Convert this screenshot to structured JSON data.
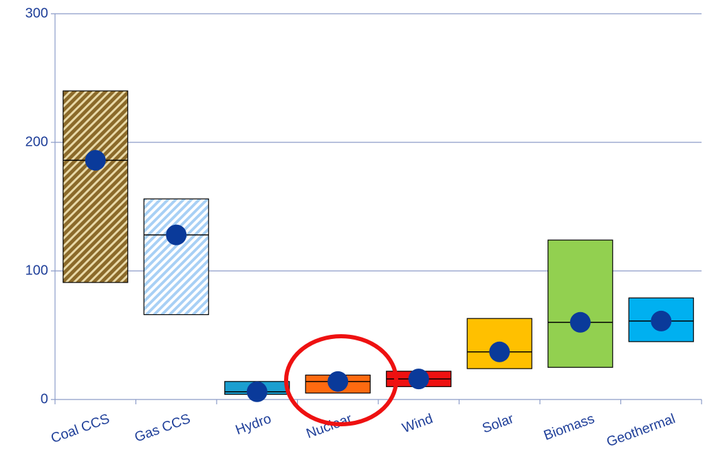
{
  "chart_data": {
    "type": "range-box",
    "categories": [
      "Coal CCS",
      "Gas CCS",
      "Hydro",
      "Nuclear",
      "Wind",
      "Solar",
      "Biomass",
      "Geothermal"
    ],
    "low": [
      91,
      66,
      4,
      5,
      10,
      24,
      25,
      45
    ],
    "high": [
      240,
      156,
      14,
      19,
      22,
      63,
      124,
      79
    ],
    "median": [
      186,
      128,
      6,
      14,
      16,
      37,
      60,
      61
    ],
    "values": [
      186,
      128,
      6,
      14,
      16,
      37,
      60,
      61
    ],
    "colors": [
      "#8b6a2a",
      "#a8d0f5",
      "#1b9fd0",
      "#ff6a10",
      "#ee1111",
      "#ffc000",
      "#92d050",
      "#00b0f0"
    ],
    "hatched": [
      true,
      true,
      false,
      false,
      false,
      false,
      false,
      false
    ],
    "point_color": "#0a3a9a",
    "ylim": [
      0,
      300
    ],
    "yticks": [
      0,
      100,
      200,
      300
    ],
    "grid": true
  }
}
